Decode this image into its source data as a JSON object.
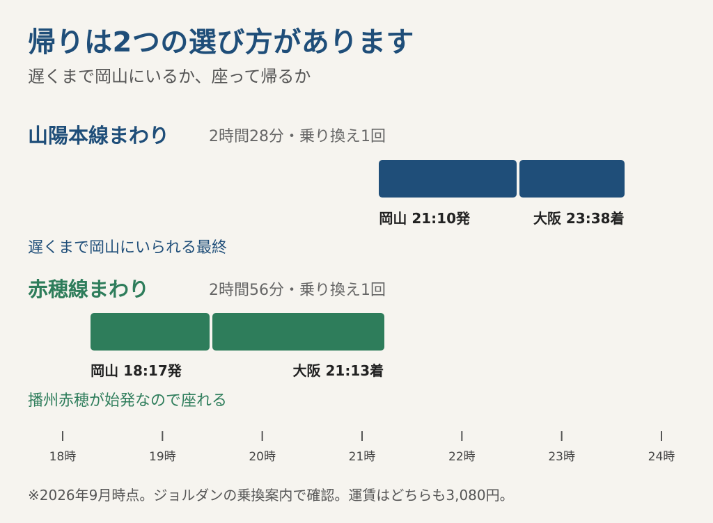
{
  "title": "帰りは2つの選び方があります",
  "subtitle": "遅くまで岡山にいるか、座って帰るか",
  "footnote": "※2026年9月時点。ジョルダンの乗換案内で確認。運賃はどちらも3,080円。",
  "colors": {
    "blue": "#1f4e79",
    "green": "#2e7d5b",
    "background": "#f6f4ef"
  },
  "chart_data": {
    "type": "timeline",
    "x_axis": {
      "range_hours": [
        18,
        24
      ],
      "ticks": [
        18,
        19,
        20,
        21,
        22,
        23,
        24
      ],
      "tick_labels": [
        "18時",
        "19時",
        "20時",
        "21時",
        "22時",
        "23時",
        "24時"
      ]
    },
    "routes": [
      {
        "name": "山陽本線まわり",
        "meta": "2時間28分・乗り換え1回",
        "note": "遅くまで岡山にいられる最終",
        "color": "#1f4e79",
        "segments": [
          [
            21.17,
            22.55
          ],
          [
            22.58,
            23.63
          ]
        ],
        "depart_label": "岡山 21:10発",
        "arrive_label": "大阪 23:38着"
      },
      {
        "name": "赤穂線まわり",
        "meta": "2時間56分・乗り換え1回",
        "note": "播州赤穂が始発なので座れる",
        "color": "#2e7d5b",
        "segments": [
          [
            18.28,
            19.47
          ],
          [
            19.5,
            21.22
          ]
        ],
        "depart_label": "岡山 18:17発",
        "arrive_label": "大阪 21:13着"
      }
    ]
  }
}
